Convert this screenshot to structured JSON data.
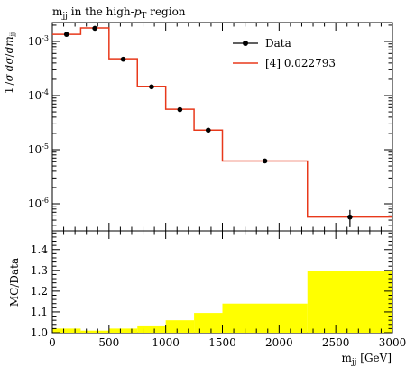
{
  "chart_data": [
    {
      "type": "line",
      "title": "m_jj in the high-p_T region",
      "ylabel": "1/σ dσ/dm_jj",
      "xlim": [
        0,
        3000
      ],
      "ylim_log10": [
        -6.5,
        -2.65
      ],
      "yscale": "log",
      "legend_placement": "top-right",
      "y_tick_labels": [
        "10^-3",
        "10^-4",
        "10^-5",
        "10^-6"
      ],
      "series": [
        {
          "name": "Data",
          "kind": "points",
          "color": "#000000",
          "x": [
            125,
            375,
            625,
            875,
            1125,
            1375,
            1875,
            2625
          ],
          "y": [
            0.00135,
            0.00175,
            0.00047,
            0.000145,
            5.5e-05,
            2.3e-05,
            6.2e-06,
            5.7e-07
          ],
          "yerr_low": [
            0,
            0,
            0,
            0,
            0,
            0,
            0,
            2e-07
          ],
          "yerr_high": [
            0,
            0,
            0,
            0,
            0,
            0,
            0,
            2e-07
          ]
        },
        {
          "name": "[4] 0.022793",
          "kind": "step",
          "color": "#e8391b",
          "bin_edges": [
            0,
            250,
            500,
            750,
            1000,
            1250,
            1500,
            2250,
            3000
          ],
          "values": [
            0.00135,
            0.00178,
            0.00048,
            0.000148,
            5.6e-05,
            2.3e-05,
            6.2e-06,
            5.7e-07
          ]
        }
      ]
    },
    {
      "type": "area",
      "ylabel": "MC/Data",
      "xlabel": "m_jj [GeV]",
      "xlim": [
        0,
        3000
      ],
      "ylim": [
        1.0,
        1.49
      ],
      "x_tick_labels": [
        "0",
        "500",
        "1000",
        "1500",
        "2000",
        "2500",
        "3000"
      ],
      "y_tick_labels": [
        "1.0",
        "1.1",
        "1.2",
        "1.3",
        "1.4"
      ],
      "band_color": "#ffff00",
      "bin_edges": [
        0,
        250,
        500,
        750,
        1000,
        1250,
        1500,
        2250,
        3000
      ],
      "values": [
        1.02,
        1.01,
        1.02,
        1.035,
        1.06,
        1.095,
        1.14,
        1.295
      ]
    }
  ]
}
